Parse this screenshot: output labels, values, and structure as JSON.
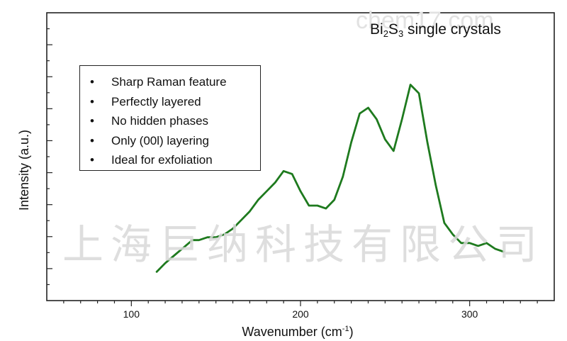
{
  "watermark": {
    "text": "上海巨纳科技有限公司",
    "latin": "chem17.com"
  },
  "chart_data": {
    "type": "line",
    "title_parts": {
      "bi": "Bi",
      "sub1": "2",
      "s": "S",
      "sub2": "3",
      "rest": " single crystals"
    },
    "xlabel": "Wavenumber (cm",
    "xlabel_sup": "-1",
    "xlabel_close": ")",
    "ylabel": "Intensity (a.u.)",
    "xlim": [
      50,
      350
    ],
    "ylim": [
      0,
      1
    ],
    "x_ticks": [
      100,
      200,
      300
    ],
    "x_tick_labels": [
      "100",
      "200",
      "300"
    ],
    "series_color": "#1e7a1e",
    "legend_items": [
      "Sharp Raman feature",
      "Perfectly  layered",
      "No hidden phases",
      "Only (00l) layering",
      "Ideal for exfoliation"
    ],
    "legend_bullet": "•",
    "series": [
      {
        "x": [
          115,
          120,
          126,
          132,
          136,
          140,
          145,
          150,
          155,
          160,
          165,
          170,
          175,
          180,
          185,
          190,
          195,
          200,
          205,
          210,
          215,
          220,
          225,
          230,
          235,
          240,
          245,
          250,
          255,
          260,
          265,
          270,
          275,
          280,
          285,
          290,
          295,
          300,
          305,
          310,
          315,
          320
        ],
        "y": [
          0.1,
          0.13,
          0.16,
          0.19,
          0.21,
          0.21,
          0.22,
          0.22,
          0.23,
          0.25,
          0.28,
          0.31,
          0.35,
          0.38,
          0.41,
          0.45,
          0.44,
          0.38,
          0.33,
          0.33,
          0.32,
          0.35,
          0.43,
          0.55,
          0.65,
          0.67,
          0.63,
          0.56,
          0.52,
          0.63,
          0.75,
          0.72,
          0.55,
          0.4,
          0.27,
          0.23,
          0.2,
          0.2,
          0.19,
          0.2,
          0.18,
          0.17
        ]
      }
    ]
  }
}
